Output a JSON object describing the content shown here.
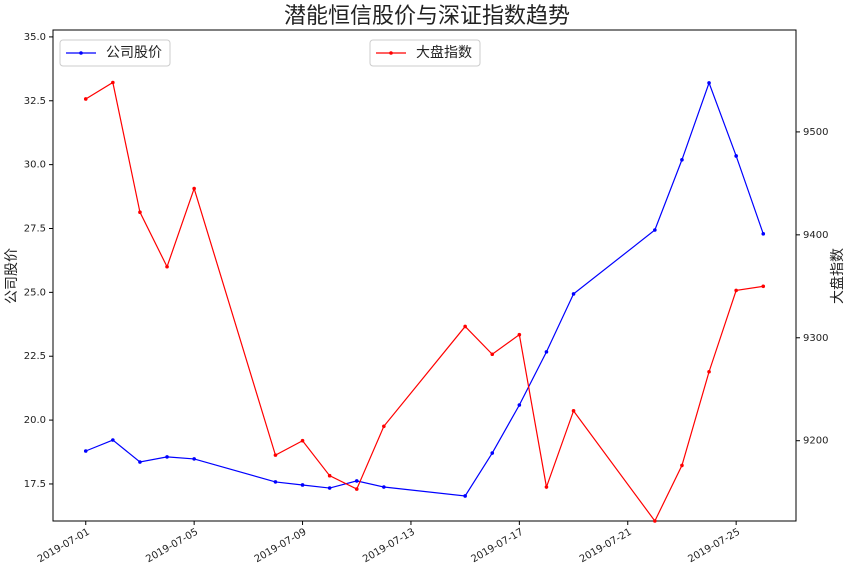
{
  "chart_data": {
    "type": "line",
    "title": "潜能恒信股价与深证指数趋势",
    "ylabel": "公司股价",
    "y2label": "大盘指数",
    "x": [
      "2019-07-01",
      "2019-07-02",
      "2019-07-03",
      "2019-07-04",
      "2019-07-05",
      "2019-07-08",
      "2019-07-09",
      "2019-07-10",
      "2019-07-11",
      "2019-07-12",
      "2019-07-15",
      "2019-07-16",
      "2019-07-17",
      "2019-07-18",
      "2019-07-19",
      "2019-07-22",
      "2019-07-23",
      "2019-07-24",
      "2019-07-25",
      "2019-07-26"
    ],
    "xlim": [
      "2019-06-29T19:00",
      "2019-07-27T05:00"
    ],
    "xticks": [
      "2019-07-01",
      "2019-07-05",
      "2019-07-09",
      "2019-07-13",
      "2019-07-17",
      "2019-07-21",
      "2019-07-25"
    ],
    "ylim": [
      16.05,
      35.27
    ],
    "yticks": [
      17.5,
      {
        "value": 20,
        "label": "20.0"
      },
      22.5,
      {
        "value": 25,
        "label": "25.0"
      },
      27.5,
      {
        "value": 30,
        "label": "30.0"
      },
      32.5,
      {
        "value": 35,
        "label": "35.0"
      }
    ],
    "y2lim": [
      9122,
      9599
    ],
    "y2ticks": [
      9200,
      9300,
      9400,
      9500
    ],
    "series": [
      {
        "name": "公司股价",
        "color": "#0000ff",
        "axis": "y",
        "legend_loc": "upper left",
        "values": [
          18.79,
          19.22,
          18.36,
          18.56,
          18.48,
          17.58,
          17.46,
          17.34,
          17.62,
          17.38,
          17.03,
          18.71,
          20.59,
          22.67,
          24.94,
          27.44,
          30.19,
          33.2,
          30.34,
          27.29
        ]
      },
      {
        "name": "大盘指数",
        "color": "#ff0000",
        "axis": "y2",
        "legend_loc": "upper center",
        "values": [
          9532,
          9548,
          9422,
          9369,
          9445,
          9186,
          9200,
          9166,
          9153,
          9214,
          9311,
          9284,
          9303,
          9155,
          9229,
          9122,
          9176,
          9267,
          9346,
          9350
        ]
      }
    ]
  }
}
